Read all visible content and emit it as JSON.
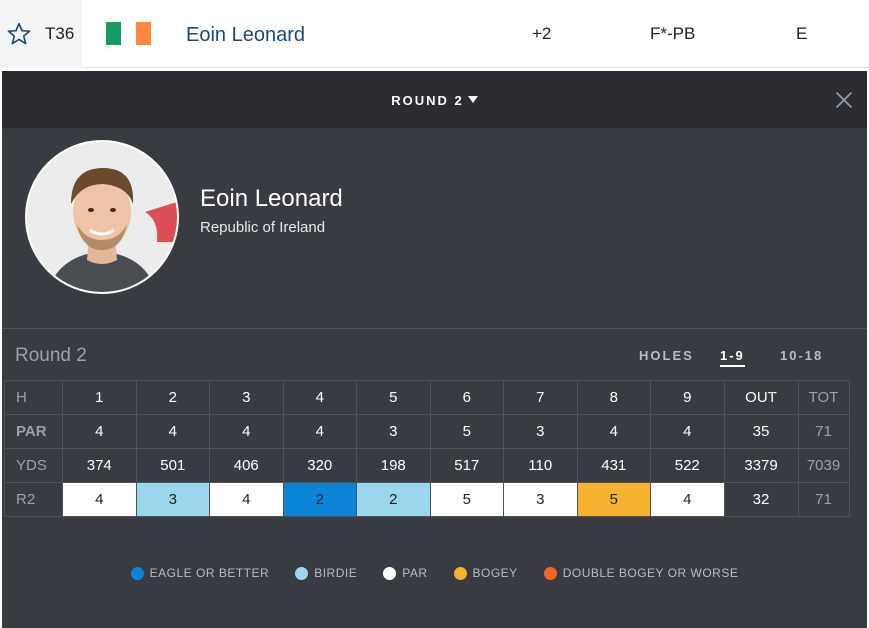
{
  "leaderboard_row": {
    "position": "T36",
    "player_name": "Eoin Leonard",
    "flag_colors": [
      "#169b62",
      "#ffffff",
      "#ff883e"
    ],
    "to_par": "+2",
    "thru": "F*-PB",
    "today": "E"
  },
  "panel": {
    "round_selector": "ROUND 2",
    "player": {
      "name": "Eoin Leonard",
      "country": "Republic of Ireland"
    },
    "round_label": "Round 2",
    "holes_label": "HOLES",
    "hole_tabs": [
      {
        "label": "1-9",
        "active": true
      },
      {
        "label": "10-18",
        "active": false
      }
    ],
    "scorecard": {
      "header_row": [
        "H",
        "1",
        "2",
        "3",
        "4",
        "5",
        "6",
        "7",
        "8",
        "9",
        "OUT",
        "TOT"
      ],
      "par_row": [
        "PAR",
        "4",
        "4",
        "4",
        "4",
        "3",
        "5",
        "3",
        "4",
        "4",
        "35",
        "71"
      ],
      "yds_row": [
        "YDS",
        "374",
        "501",
        "406",
        "320",
        "198",
        "517",
        "110",
        "431",
        "522",
        "3379",
        "7039"
      ],
      "r2_row": [
        "R2",
        "4",
        "3",
        "4",
        "2",
        "2",
        "5",
        "3",
        "5",
        "4",
        "32",
        "71"
      ],
      "r2_results": [
        "par",
        "birdie",
        "par",
        "eagle",
        "birdie",
        "par",
        "par",
        "bogey",
        "par"
      ]
    },
    "legend": [
      {
        "label": "EAGLE OR BETTER",
        "color": "#0b84d6"
      },
      {
        "label": "BIRDIE",
        "color": "#9ad6ec"
      },
      {
        "label": "PAR",
        "color": "#ffffff"
      },
      {
        "label": "BOGEY",
        "color": "#f7b330"
      },
      {
        "label": "DOUBLE BOGEY OR WORSE",
        "color": "#f26722"
      }
    ]
  }
}
